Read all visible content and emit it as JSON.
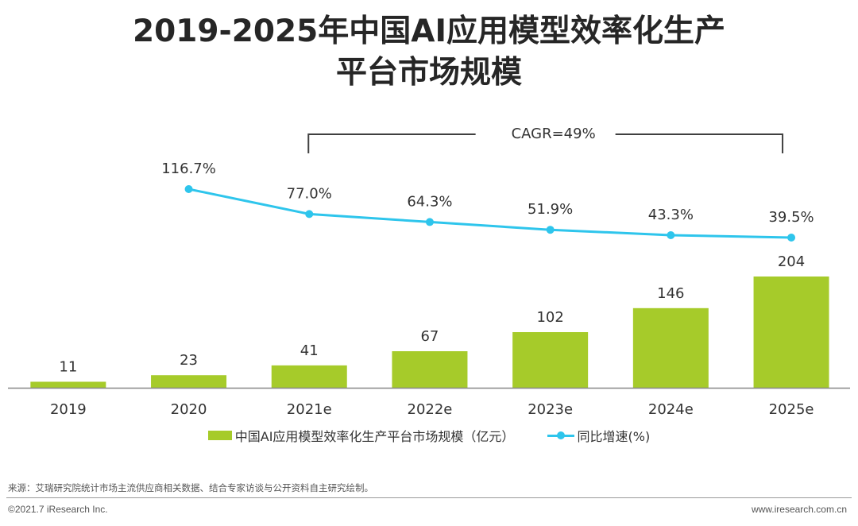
{
  "title_line1": "2019-2025年中国AI应用模型效率化生产",
  "title_line2": "平台市场规模",
  "cagr_label": "CAGR=49%",
  "legend": {
    "bar": "中国AI应用模型效率化生产平台市场规模（亿元）",
    "line": "同比增速(%)"
  },
  "source": "来源：艾瑞研究院统计市场主流供应商相关数据、结合专家访谈与公开资料自主研究绘制。",
  "footer_left": "©2021.7 iResearch Inc.",
  "footer_right": "www.iresearch.com.cn",
  "colors": {
    "bar": "#a6cb2a",
    "line": "#2ec5ec",
    "axis": "#888888",
    "bracket": "#404040"
  },
  "chart_data": {
    "type": "bar",
    "categories": [
      "2019",
      "2020",
      "2021e",
      "2022e",
      "2023e",
      "2024e",
      "2025e"
    ],
    "series": [
      {
        "name": "中国AI应用模型效率化生产平台市场规模（亿元）",
        "type": "bar",
        "values": [
          11,
          23,
          41,
          67,
          102,
          146,
          204
        ],
        "labels": [
          "11",
          "23",
          "41",
          "67",
          "102",
          "146",
          "204"
        ]
      },
      {
        "name": "同比增速(%)",
        "type": "line",
        "values": [
          null,
          116.7,
          77.0,
          64.3,
          51.9,
          43.3,
          39.5
        ],
        "labels": [
          null,
          "116.7%",
          "77.0%",
          "64.3%",
          "51.9%",
          "43.3%",
          "39.5%"
        ]
      }
    ],
    "annotation": {
      "text": "CAGR=49%",
      "from": "2021e",
      "to": "2025e"
    }
  }
}
